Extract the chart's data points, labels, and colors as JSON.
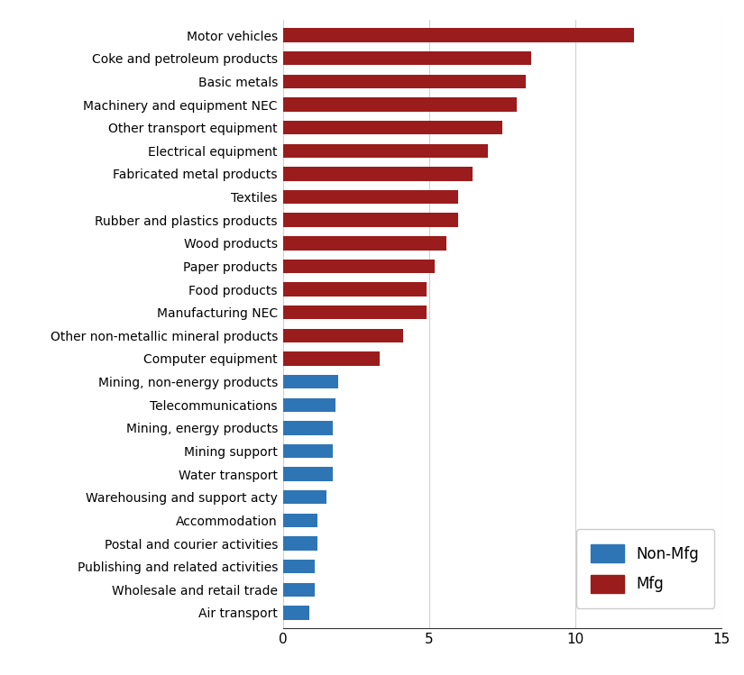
{
  "categories": [
    "Motor vehicles",
    "Coke and petroleum products",
    "Basic metals",
    "Machinery and equipment NEC",
    "Other transport equipment",
    "Electrical equipment",
    "Fabricated metal products",
    "Textiles",
    "Rubber and plastics products",
    "Wood products",
    "Paper products",
    "Food products",
    "Manufacturing NEC",
    "Other non-metallic mineral products",
    "Computer equipment",
    "Mining, non-energy products",
    "Telecommunications",
    "Mining, energy products",
    "Mining support",
    "Water transport",
    "Warehousing and support acty",
    "Accommodation",
    "Postal and courier activities",
    "Publishing and related activities",
    "Wholesale and retail trade",
    "Air transport"
  ],
  "values": [
    12.0,
    8.5,
    8.3,
    8.0,
    7.5,
    7.0,
    6.5,
    6.0,
    6.0,
    5.6,
    5.2,
    4.9,
    4.9,
    4.1,
    3.3,
    1.9,
    1.8,
    1.7,
    1.7,
    1.7,
    1.5,
    1.2,
    1.2,
    1.1,
    1.1,
    0.9
  ],
  "colors": [
    "#9b1c1c",
    "#9b1c1c",
    "#9b1c1c",
    "#9b1c1c",
    "#9b1c1c",
    "#9b1c1c",
    "#9b1c1c",
    "#9b1c1c",
    "#9b1c1c",
    "#9b1c1c",
    "#9b1c1c",
    "#9b1c1c",
    "#9b1c1c",
    "#9b1c1c",
    "#9b1c1c",
    "#2e75b6",
    "#2e75b6",
    "#2e75b6",
    "#2e75b6",
    "#2e75b6",
    "#2e75b6",
    "#2e75b6",
    "#2e75b6",
    "#2e75b6",
    "#2e75b6",
    "#2e75b6"
  ],
  "xlim": [
    0,
    15
  ],
  "xticks": [
    0,
    5,
    10,
    15
  ],
  "legend_labels": [
    "Non-Mfg",
    "Mfg"
  ],
  "legend_colors": [
    "#2e75b6",
    "#9b1c1c"
  ],
  "bg_color": "#ffffff",
  "bar_height": 0.6,
  "gridcolor": "#d0d0d0",
  "label_fontsize": 10,
  "tick_fontsize": 11
}
